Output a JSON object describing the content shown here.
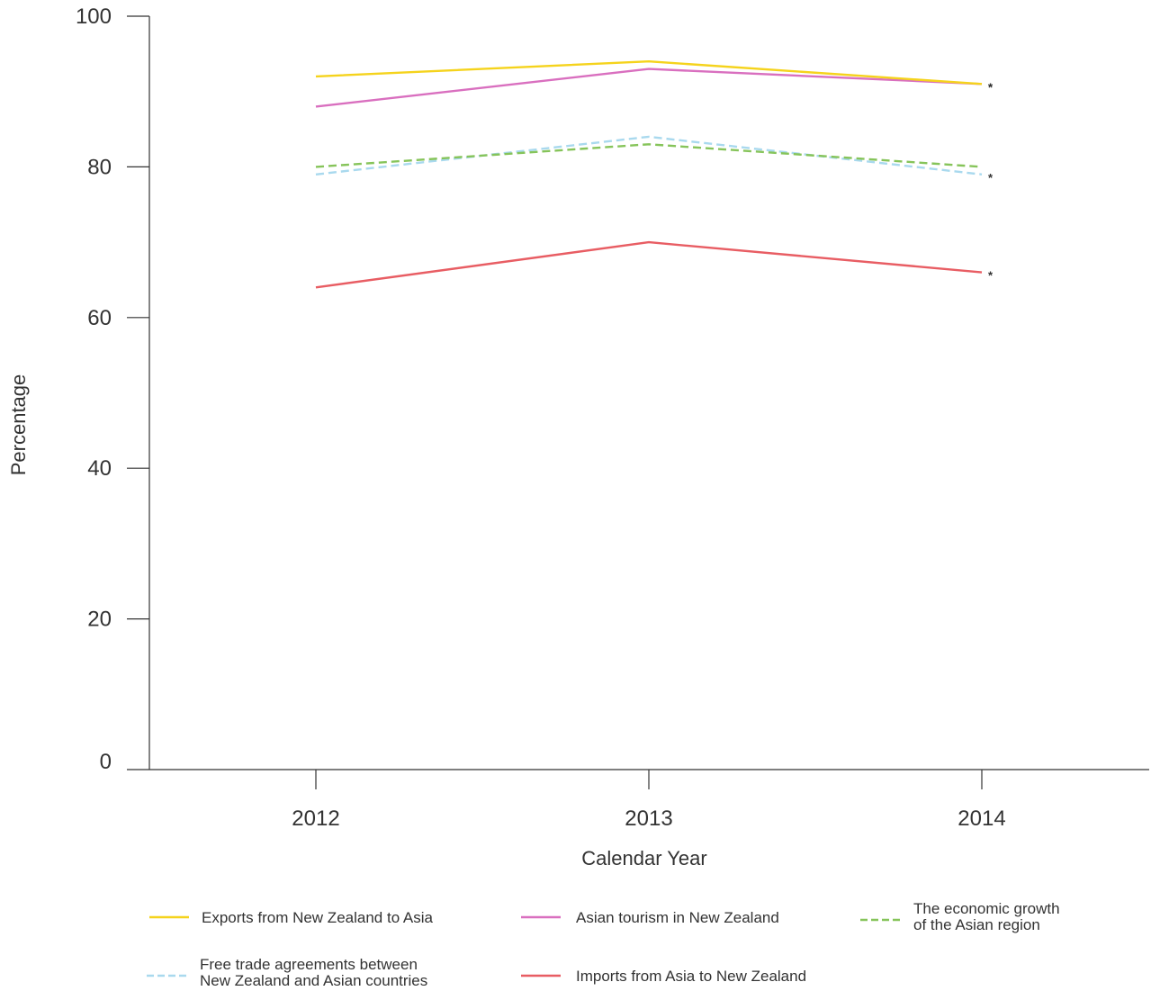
{
  "chart_data": {
    "type": "line",
    "title": "",
    "xlabel": "Calendar Year",
    "ylabel": "Percentage",
    "categories": [
      "2012",
      "2013",
      "2014"
    ],
    "yticks": [
      "0",
      "20",
      "40",
      "60",
      "80",
      "100"
    ],
    "ylim": [
      0,
      100
    ],
    "grid": false,
    "legend_position": "bottom",
    "series": [
      {
        "name": "Exports from New Zealand to Asia",
        "values": [
          92,
          94,
          91
        ],
        "color": "#f5d31c",
        "dashed": false,
        "asterisk_on_last": true
      },
      {
        "name": "Asian tourism in New Zealand",
        "values": [
          88,
          93,
          91
        ],
        "color": "#d96fbf",
        "dashed": false,
        "asterisk_on_last": true
      },
      {
        "name": "The economic growth of the Asian region",
        "legend_lines": [
          "The economic growth",
          "of the Asian region"
        ],
        "values": [
          80,
          83,
          80
        ],
        "color": "#86c45a",
        "dashed": true,
        "asterisk_on_last": false
      },
      {
        "name": "Free trade agreements between New Zealand and Asian countries",
        "legend_lines": [
          "Free trade agreements between",
          "New Zealand and Asian countries"
        ],
        "values": [
          79,
          84,
          79
        ],
        "color": "#a9d9ee",
        "dashed": true,
        "asterisk_on_last": true
      },
      {
        "name": "Imports from Asia to New Zealand",
        "values": [
          64,
          70,
          66
        ],
        "color": "#e85d63",
        "dashed": false,
        "asterisk_on_last": true
      }
    ],
    "annotation_marker": "*"
  }
}
